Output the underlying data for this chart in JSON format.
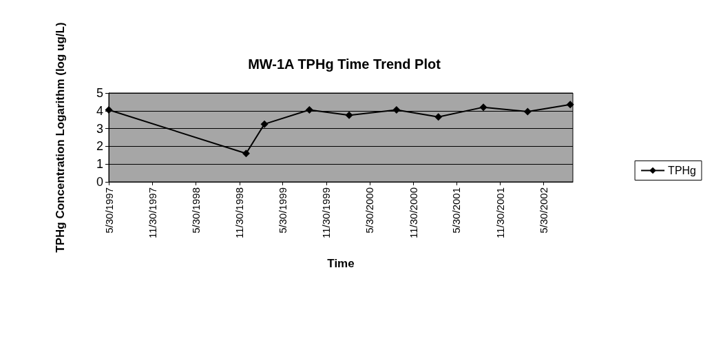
{
  "chart_data": {
    "type": "line",
    "title": "MW-1A TPHg Time Trend Plot",
    "xlabel": "Time",
    "ylabel": "TPHg Concentration Logarithm (log ug/L)",
    "x": [
      "1997-05-30",
      "1998-12-28",
      "1999-03-15",
      "1999-09-20",
      "2000-03-05",
      "2000-09-20",
      "2001-03-15",
      "2001-09-20",
      "2002-03-25",
      "2002-09-20"
    ],
    "series": [
      {
        "name": "TPHg",
        "color": "#000000",
        "values": [
          4.05,
          1.6,
          3.25,
          4.05,
          3.75,
          4.05,
          3.65,
          4.2,
          3.95,
          4.35
        ]
      }
    ],
    "xlim": [
      "1997-05-30",
      "2002-10-01"
    ],
    "xticks": [
      {
        "value": "1997-05-30",
        "label": "5/30/1997"
      },
      {
        "value": "1997-11-30",
        "label": "11/30/1997"
      },
      {
        "value": "1998-05-30",
        "label": "5/30/1998"
      },
      {
        "value": "1998-11-30",
        "label": "11/30/1998"
      },
      {
        "value": "1999-05-30",
        "label": "5/30/1999"
      },
      {
        "value": "1999-11-30",
        "label": "11/30/1999"
      },
      {
        "value": "2000-05-30",
        "label": "5/30/2000"
      },
      {
        "value": "2000-11-30",
        "label": "11/30/2000"
      },
      {
        "value": "2001-05-30",
        "label": "5/30/2001"
      },
      {
        "value": "2001-11-30",
        "label": "11/30/2001"
      },
      {
        "value": "2002-05-30",
        "label": "5/30/2002"
      }
    ],
    "ylim": [
      0,
      5
    ],
    "yticks": [
      0,
      1,
      2,
      3,
      4,
      5
    ],
    "grid": "y",
    "legend": "right",
    "marker": "diamond",
    "line_style": "solid"
  }
}
